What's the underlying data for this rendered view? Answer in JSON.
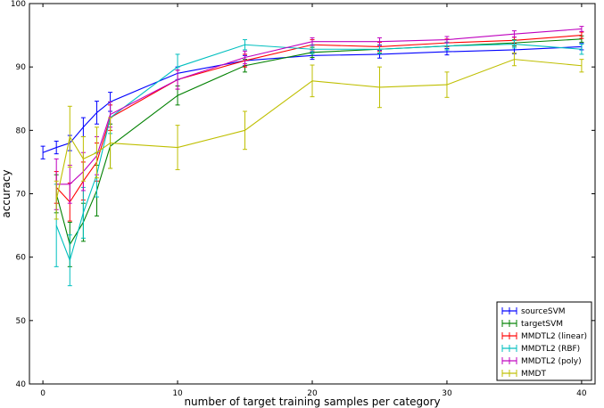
{
  "chart_data": {
    "type": "line",
    "title": "",
    "xlabel": "number of target training samples per category",
    "ylabel": "accuracy",
    "xlim": [
      -1,
      41
    ],
    "ylim": [
      40,
      100
    ],
    "x_ticks": [
      0,
      10,
      20,
      30,
      40
    ],
    "y_ticks": [
      40,
      50,
      60,
      70,
      80,
      90,
      100
    ],
    "grid": false,
    "legend_position": "lower-right",
    "error_bars": true,
    "series": [
      {
        "name": "sourceSVM",
        "color": "#0000ff",
        "x": [
          0,
          1,
          2,
          3,
          4,
          5,
          10,
          15,
          20,
          25,
          30,
          35,
          40
        ],
        "y": [
          76.5,
          77.3,
          78.0,
          80.5,
          82.8,
          84.5,
          89.0,
          91.0,
          91.8,
          92.0,
          92.4,
          92.7,
          93.2
        ],
        "err": [
          1.0,
          1.0,
          1.2,
          1.5,
          1.8,
          1.5,
          1.0,
          0.8,
          0.6,
          0.6,
          0.5,
          0.6,
          0.5
        ]
      },
      {
        "name": "targetSVM",
        "color": "#008000",
        "x": [
          1,
          2,
          3,
          4,
          5,
          10,
          15,
          20,
          25,
          30,
          35,
          40
        ],
        "y": [
          70.0,
          62.0,
          65.5,
          70.5,
          77.5,
          85.5,
          90.2,
          92.3,
          92.8,
          93.3,
          93.8,
          94.4
        ],
        "err": [
          3.0,
          3.5,
          3.0,
          4.0,
          3.5,
          1.5,
          1.0,
          0.8,
          0.6,
          0.6,
          0.5,
          0.5
        ]
      },
      {
        "name": "MMDTL2 (linear)",
        "color": "#ff0000",
        "x": [
          1,
          2,
          3,
          4,
          5,
          10,
          15,
          20,
          25,
          30,
          35,
          40
        ],
        "y": [
          71.0,
          68.7,
          72.0,
          75.0,
          82.0,
          88.0,
          91.0,
          93.5,
          93.2,
          93.8,
          94.2,
          95.0
        ],
        "err": [
          2.5,
          3.0,
          3.0,
          3.0,
          2.0,
          1.5,
          1.0,
          0.8,
          0.7,
          0.6,
          0.5,
          0.5
        ]
      },
      {
        "name": "MMDTL2 (RBF)",
        "color": "#00bfbf",
        "x": [
          1,
          2,
          3,
          4,
          5,
          10,
          15,
          20,
          25,
          30,
          35,
          40
        ],
        "y": [
          65.0,
          59.5,
          67.0,
          73.0,
          82.0,
          90.0,
          93.5,
          92.8,
          92.8,
          93.3,
          93.6,
          92.8
        ],
        "err": [
          6.5,
          4.0,
          4.0,
          3.5,
          2.5,
          2.0,
          0.8,
          0.7,
          0.7,
          0.6,
          0.6,
          0.8
        ]
      },
      {
        "name": "MMDTL2 (poly)",
        "color": "#bf00bf",
        "x": [
          1,
          2,
          3,
          4,
          5,
          10,
          15,
          20,
          25,
          30,
          35,
          40
        ],
        "y": [
          71.5,
          71.5,
          73.5,
          76.0,
          82.5,
          88.0,
          91.5,
          94.0,
          94.0,
          94.3,
          95.2,
          96.0
        ],
        "err": [
          4.0,
          3.0,
          3.0,
          3.0,
          2.0,
          1.5,
          1.0,
          0.6,
          0.6,
          0.5,
          0.5,
          0.4
        ]
      },
      {
        "name": "MMDT",
        "color": "#bfbf00",
        "x": [
          1,
          2,
          3,
          4,
          5,
          10,
          15,
          20,
          25,
          30,
          35,
          40
        ],
        "y": [
          69.0,
          79.0,
          75.5,
          76.5,
          78.0,
          77.3,
          80.0,
          87.8,
          86.8,
          87.2,
          91.2,
          90.2
        ],
        "err": [
          3.0,
          4.8,
          3.5,
          4.0,
          4.0,
          3.5,
          3.0,
          2.5,
          3.2,
          2.0,
          1.0,
          1.0
        ]
      }
    ]
  }
}
